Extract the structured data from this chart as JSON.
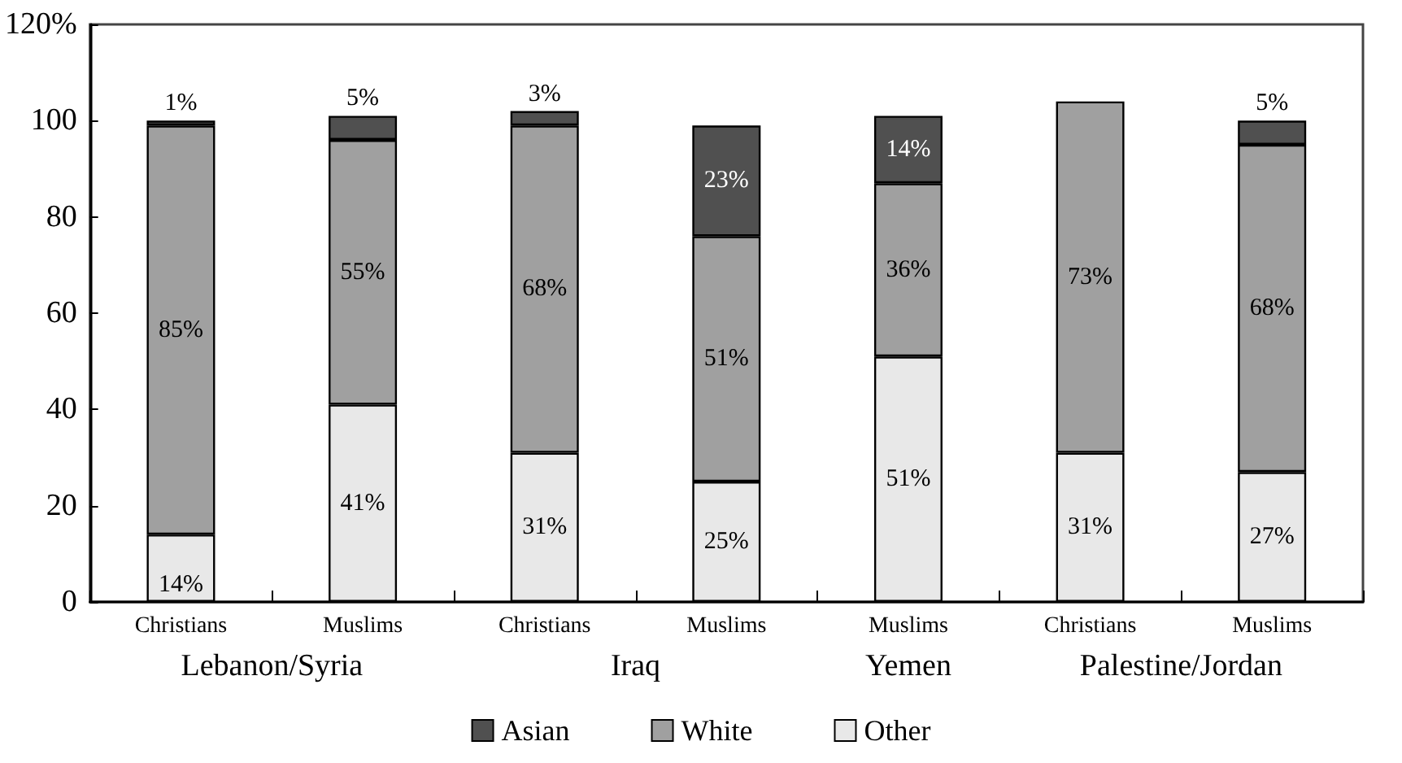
{
  "chart_data": {
    "type": "bar",
    "stacked": true,
    "categories": [
      "Christians",
      "Muslims",
      "Christians",
      "Muslims",
      "Muslims",
      "Christians",
      "Muslims"
    ],
    "annotations": [
      "Lebanon/Syria",
      "Iraq",
      "Yemen",
      "Palestine/Jordan"
    ],
    "series": [
      {
        "name": "Other",
        "color": "#e8e8e8",
        "values": [
          14,
          41,
          31,
          25,
          51,
          31,
          27
        ],
        "value_labels": [
          "14%",
          "41%",
          "31%",
          "25%",
          "51%",
          "31%",
          "27%"
        ]
      },
      {
        "name": "White",
        "color": "#a0a0a0",
        "values": [
          85,
          55,
          68,
          51,
          36,
          73,
          68
        ],
        "value_labels": [
          "85%",
          "55%",
          "68%",
          "51%",
          "36%",
          "73%",
          "68%"
        ]
      },
      {
        "name": "Asian",
        "color": "#505050",
        "values": [
          1,
          5,
          3,
          23,
          14,
          null,
          5
        ],
        "value_labels": [
          "1%",
          "5%",
          "3%",
          "23%",
          "14%",
          null,
          "5%"
        ]
      }
    ],
    "ylim": [
      0,
      120
    ],
    "yticks": [
      0,
      20,
      40,
      60,
      80,
      100,
      {
        "value": 120,
        "label": "120%"
      }
    ],
    "grid": false,
    "legend": "bottom"
  }
}
